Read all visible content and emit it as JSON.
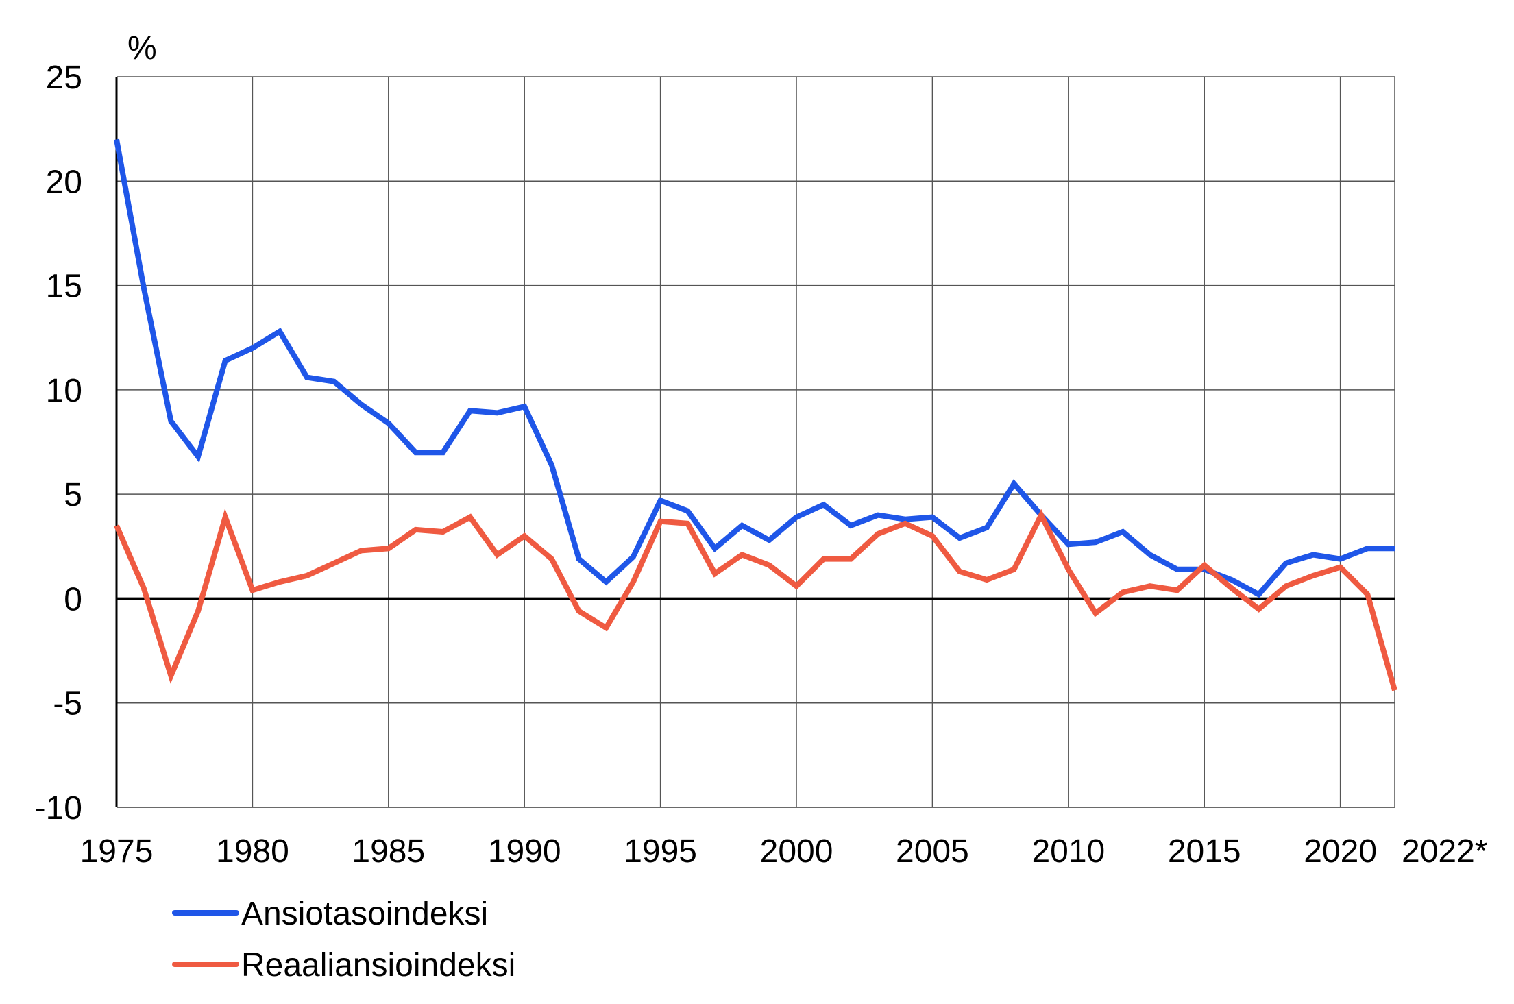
{
  "chart_data": {
    "type": "line",
    "ylabel": "%",
    "ylim": [
      -10,
      25
    ],
    "yticks": [
      25,
      20,
      15,
      10,
      5,
      0,
      -5,
      -10
    ],
    "xlim": [
      1975,
      2022
    ],
    "xtick_labels": [
      {
        "x": 1975,
        "label": "1975"
      },
      {
        "x": 1980,
        "label": "1980"
      },
      {
        "x": 1985,
        "label": "1985"
      },
      {
        "x": 1990,
        "label": "1990"
      },
      {
        "x": 1995,
        "label": "1995"
      },
      {
        "x": 2000,
        "label": "2000"
      },
      {
        "x": 2005,
        "label": "2005"
      },
      {
        "x": 2010,
        "label": "2010"
      },
      {
        "x": 2015,
        "label": "2015"
      },
      {
        "x": 2020,
        "label": "2020"
      },
      {
        "x": 2022,
        "label": "2022*"
      }
    ],
    "grid": true,
    "legend_position": "bottom-left",
    "x": [
      1975,
      1976,
      1977,
      1978,
      1979,
      1980,
      1981,
      1982,
      1983,
      1984,
      1985,
      1986,
      1987,
      1988,
      1989,
      1990,
      1991,
      1992,
      1993,
      1994,
      1995,
      1996,
      1997,
      1998,
      1999,
      2000,
      2001,
      2002,
      2003,
      2004,
      2005,
      2006,
      2007,
      2008,
      2009,
      2010,
      2011,
      2012,
      2013,
      2014,
      2015,
      2016,
      2017,
      2018,
      2019,
      2020,
      2021,
      2022
    ],
    "series": [
      {
        "name": "Ansiotasoindeksi",
        "color": "#1f56e8",
        "values": [
          22.0,
          14.9,
          8.5,
          6.8,
          11.4,
          12.0,
          12.8,
          10.6,
          10.4,
          9.3,
          8.4,
          7.0,
          7.0,
          9.0,
          8.9,
          9.2,
          6.4,
          1.9,
          0.8,
          2.0,
          4.7,
          4.2,
          2.4,
          3.5,
          2.8,
          3.9,
          4.5,
          3.5,
          4.0,
          3.8,
          3.9,
          2.9,
          3.4,
          5.5,
          4.0,
          2.6,
          2.7,
          3.2,
          2.1,
          1.4,
          1.4,
          0.9,
          0.2,
          1.7,
          2.1,
          1.9,
          2.4,
          2.4
        ]
      },
      {
        "name": "Reaaliansioindeksi",
        "color": "#ef5a41",
        "values": [
          3.5,
          0.5,
          -3.7,
          -0.6,
          3.9,
          0.4,
          0.8,
          1.1,
          1.7,
          2.3,
          2.4,
          3.3,
          3.2,
          3.9,
          2.1,
          3.0,
          1.9,
          -0.6,
          -1.4,
          0.8,
          3.7,
          3.6,
          1.2,
          2.1,
          1.6,
          0.6,
          1.9,
          1.9,
          3.1,
          3.6,
          3.0,
          1.3,
          0.9,
          1.4,
          4.0,
          1.4,
          -0.7,
          0.3,
          0.6,
          0.4,
          1.6,
          0.5,
          -0.5,
          0.6,
          1.1,
          1.5,
          0.2,
          -4.4
        ]
      }
    ]
  }
}
